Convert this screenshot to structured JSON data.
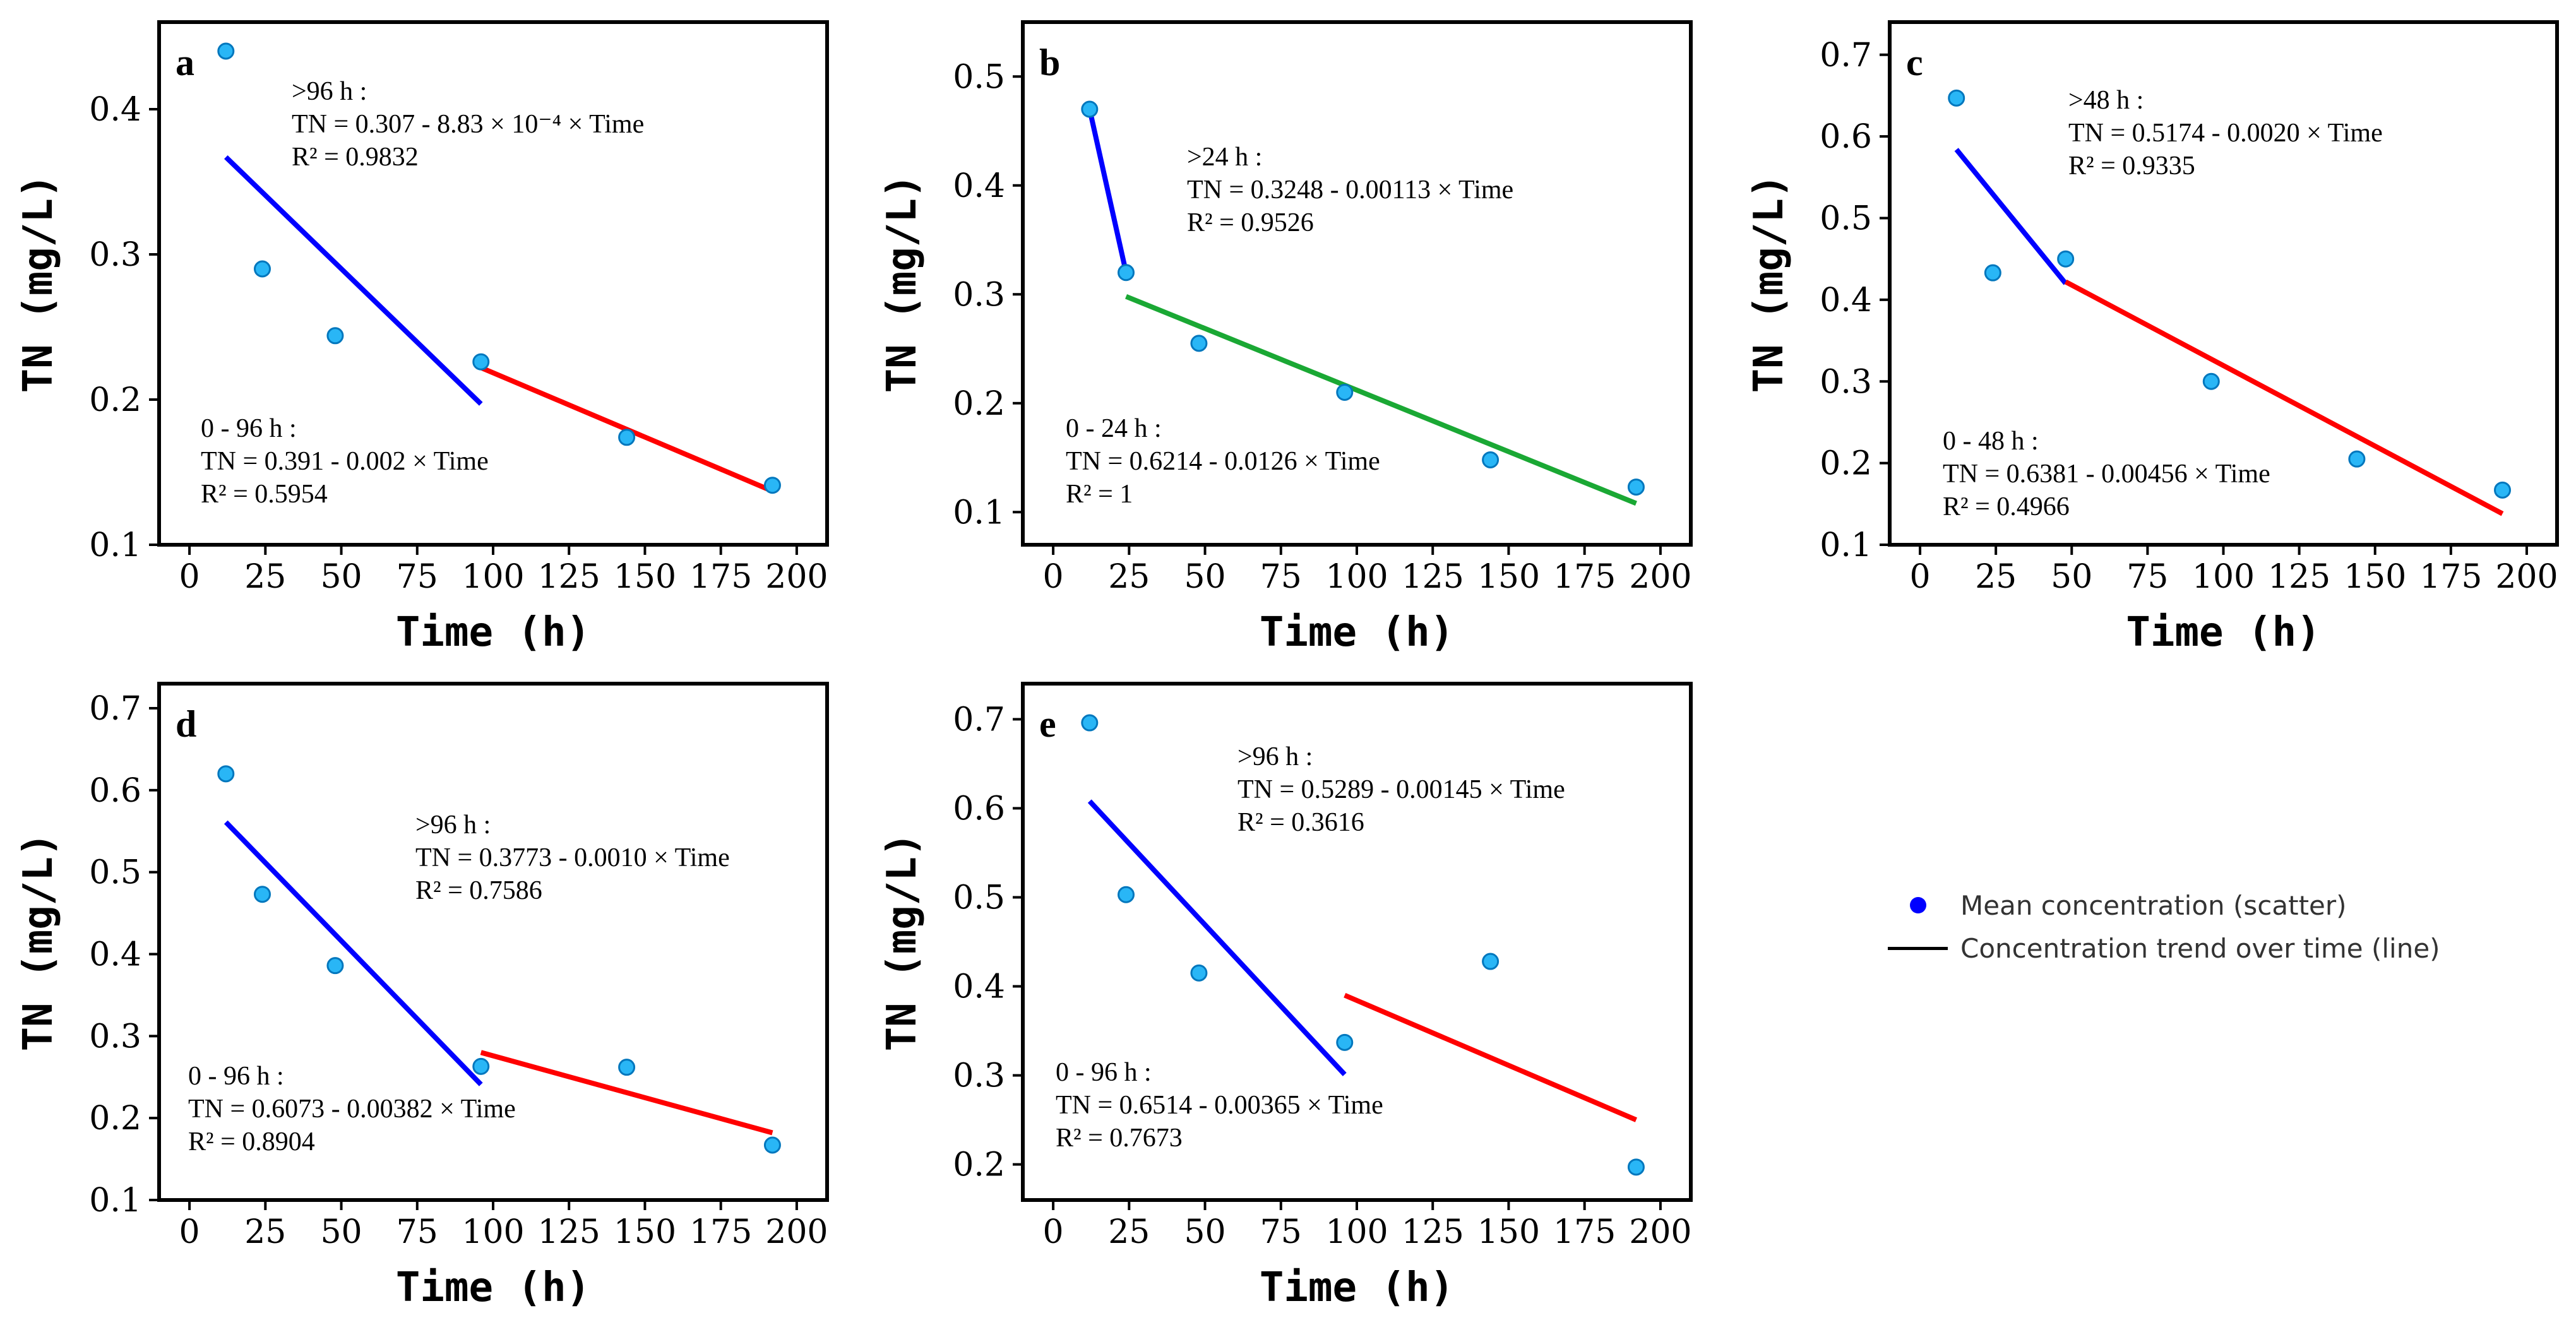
{
  "colors": {
    "point_fill": "#29b6f6",
    "point_edge": "#0277bd",
    "early_fit": "#0000ff",
    "late_fit_red": "#ff0000",
    "late_fit_green": "#1aa834",
    "axis": "#000000"
  },
  "legend": {
    "scatter_label": "Mean concentration (scatter)",
    "line_label": "Concentration trend over time (line)",
    "scatter_color": "#0000ff",
    "line_color": "#000000"
  },
  "chart_data": [
    {
      "type": "scatter",
      "panel": "a",
      "xlabel": "Time (h)",
      "ylabel": "TN (mg/L)",
      "xlim": [
        -10,
        210
      ],
      "ylim": [
        0.1,
        0.46
      ],
      "xticks": [
        "0",
        "25",
        "50",
        "75",
        "100",
        "125",
        "150",
        "175",
        "200"
      ],
      "xtick_values": [
        0,
        25,
        50,
        75,
        100,
        125,
        150,
        175,
        200
      ],
      "yticks": [
        "0.1",
        "0.2",
        "0.3",
        "0.4"
      ],
      "ytick_values": [
        0.1,
        0.2,
        0.3,
        0.4
      ],
      "x": [
        12,
        24,
        48,
        96,
        144,
        192
      ],
      "y": [
        0.44,
        0.29,
        0.244,
        0.226,
        0.174,
        0.141
      ],
      "fits": [
        {
          "color_key": "early_fit",
          "x": [
            12,
            96
          ],
          "y": [
            0.367,
            0.197
          ]
        },
        {
          "color_key": "late_fit_red",
          "x": [
            96,
            192
          ],
          "y": [
            0.222,
            0.137
          ]
        }
      ],
      "annotations": [
        {
          "lines": [
            ">96 h :",
            "TN = 0.307 - 8.83 × 10⁻⁴ × Time",
            "R² = 0.9832"
          ]
        },
        {
          "lines": [
            "0 - 96 h :",
            "TN = 0.391 - 0.002 × Time",
            "R² = 0.5954"
          ]
        }
      ]
    },
    {
      "type": "scatter",
      "panel": "b",
      "xlabel": "Time (h)",
      "ylabel": "TN (mg/L)",
      "xlim": [
        -10,
        210
      ],
      "ylim": [
        0.07,
        0.55
      ],
      "xticks": [
        "0",
        "25",
        "50",
        "75",
        "100",
        "125",
        "150",
        "175",
        "200"
      ],
      "xtick_values": [
        0,
        25,
        50,
        75,
        100,
        125,
        150,
        175,
        200
      ],
      "yticks": [
        "0.1",
        "0.2",
        "0.3",
        "0.4",
        "0.5"
      ],
      "ytick_values": [
        0.1,
        0.2,
        0.3,
        0.4,
        0.5
      ],
      "x": [
        12,
        24,
        48,
        96,
        144,
        192
      ],
      "y": [
        0.47,
        0.32,
        0.255,
        0.21,
        0.148,
        0.123
      ],
      "fits": [
        {
          "color_key": "early_fit",
          "x": [
            12,
            24
          ],
          "y": [
            0.47,
            0.32
          ]
        },
        {
          "color_key": "late_fit_green",
          "x": [
            24,
            192
          ],
          "y": [
            0.298,
            0.108
          ]
        }
      ],
      "annotations": [
        {
          "lines": [
            ">24 h :",
            "TN = 0.3248 - 0.00113 × Time",
            "R² = 0.9526"
          ]
        },
        {
          "lines": [
            "0 - 24 h :",
            "TN = 0.6214 - 0.0126 × Time",
            "R² = 1"
          ]
        }
      ]
    },
    {
      "type": "scatter",
      "panel": "c",
      "xlabel": "Time (h)",
      "ylabel": "TN (mg/L)",
      "xlim": [
        -10,
        210
      ],
      "ylim": [
        0.1,
        0.74
      ],
      "xticks": [
        "0",
        "25",
        "50",
        "75",
        "100",
        "125",
        "150",
        "175",
        "200"
      ],
      "xtick_values": [
        0,
        25,
        50,
        75,
        100,
        125,
        150,
        175,
        200
      ],
      "yticks": [
        "0.1",
        "0.2",
        "0.3",
        "0.4",
        "0.5",
        "0.6",
        "0.7"
      ],
      "ytick_values": [
        0.1,
        0.2,
        0.3,
        0.4,
        0.5,
        0.6,
        0.7
      ],
      "x": [
        12,
        24,
        48,
        96,
        144,
        192
      ],
      "y": [
        0.647,
        0.433,
        0.45,
        0.3,
        0.205,
        0.167
      ],
      "fits": [
        {
          "color_key": "early_fit",
          "x": [
            12,
            48
          ],
          "y": [
            0.584,
            0.42
          ]
        },
        {
          "color_key": "late_fit_red",
          "x": [
            48,
            192
          ],
          "y": [
            0.422,
            0.138
          ]
        }
      ],
      "annotations": [
        {
          "lines": [
            ">48 h :",
            "TN = 0.5174 - 0.0020 × Time",
            "R² = 0.9335"
          ]
        },
        {
          "lines": [
            "0 - 48 h :",
            "TN = 0.6381 - 0.00456 × Time",
            "R² = 0.4966"
          ]
        }
      ]
    },
    {
      "type": "scatter",
      "panel": "d",
      "xlabel": "Time (h)",
      "ylabel": "TN (mg/L)",
      "xlim": [
        -10,
        210
      ],
      "ylim": [
        0.1,
        0.73
      ],
      "xticks": [
        "0",
        "25",
        "50",
        "75",
        "100",
        "125",
        "150",
        "175",
        "200"
      ],
      "xtick_values": [
        0,
        25,
        50,
        75,
        100,
        125,
        150,
        175,
        200
      ],
      "yticks": [
        "0.1",
        "0.2",
        "0.3",
        "0.4",
        "0.5",
        "0.6",
        "0.7"
      ],
      "ytick_values": [
        0.1,
        0.2,
        0.3,
        0.4,
        0.5,
        0.6,
        0.7
      ],
      "x": [
        12,
        24,
        48,
        96,
        144,
        192
      ],
      "y": [
        0.62,
        0.473,
        0.386,
        0.263,
        0.262,
        0.167
      ],
      "fits": [
        {
          "color_key": "early_fit",
          "x": [
            12,
            96
          ],
          "y": [
            0.561,
            0.241
          ]
        },
        {
          "color_key": "late_fit_red",
          "x": [
            96,
            192
          ],
          "y": [
            0.28,
            0.182
          ]
        }
      ],
      "annotations": [
        {
          "lines": [
            ">96 h :",
            "TN = 0.3773 - 0.0010 × Time",
            "R² = 0.7586"
          ]
        },
        {
          "lines": [
            "0 - 96 h :",
            "TN = 0.6073 - 0.00382 × Time",
            "R² = 0.8904"
          ]
        }
      ]
    },
    {
      "type": "scatter",
      "panel": "e",
      "xlabel": "Time (h)",
      "ylabel": "TN (mg/L)",
      "xlim": [
        -10,
        210
      ],
      "ylim": [
        0.16,
        0.74
      ],
      "xticks": [
        "0",
        "25",
        "50",
        "75",
        "100",
        "125",
        "150",
        "175",
        "200"
      ],
      "xtick_values": [
        0,
        25,
        50,
        75,
        100,
        125,
        150,
        175,
        200
      ],
      "yticks": [
        "0.2",
        "0.3",
        "0.4",
        "0.5",
        "0.6",
        "0.7"
      ],
      "ytick_values": [
        0.2,
        0.3,
        0.4,
        0.5,
        0.6,
        0.7
      ],
      "x": [
        12,
        24,
        48,
        96,
        144,
        192
      ],
      "y": [
        0.696,
        0.503,
        0.415,
        0.337,
        0.428,
        0.197
      ],
      "fits": [
        {
          "color_key": "early_fit",
          "x": [
            12,
            96
          ],
          "y": [
            0.608,
            0.301
          ]
        },
        {
          "color_key": "late_fit_red",
          "x": [
            96,
            192
          ],
          "y": [
            0.39,
            0.25
          ]
        }
      ],
      "annotations": [
        {
          "lines": [
            ">96 h :",
            "TN = 0.5289 - 0.00145 × Time",
            "R² = 0.3616"
          ]
        },
        {
          "lines": [
            "0 - 96 h :",
            "TN = 0.6514 - 0.00365 × Time",
            "R² = 0.7673"
          ]
        }
      ]
    }
  ]
}
